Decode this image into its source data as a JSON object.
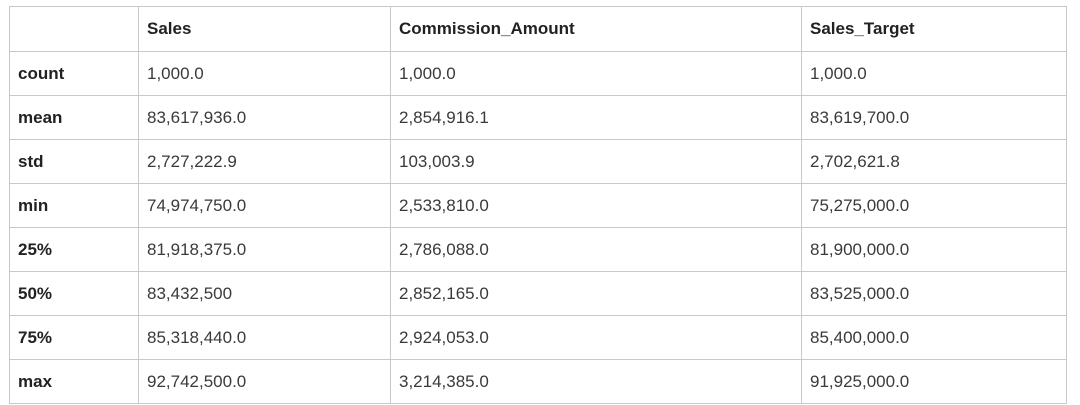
{
  "table": {
    "corner": "",
    "columns": [
      "Sales",
      "Commission_Amount",
      "Sales_Target"
    ],
    "rows": [
      {
        "label": "count",
        "values": [
          "1,000.0",
          "1,000.0",
          "1,000.0"
        ]
      },
      {
        "label": "mean",
        "values": [
          "83,617,936.0",
          "2,854,916.1",
          "83,619,700.0"
        ]
      },
      {
        "label": "std",
        "values": [
          "2,727,222.9",
          "103,003.9",
          "2,702,621.8"
        ]
      },
      {
        "label": "min",
        "values": [
          "74,974,750.0",
          "2,533,810.0",
          "75,275,000.0"
        ]
      },
      {
        "label": "25%",
        "values": [
          "81,918,375.0",
          "2,786,088.0",
          "81,900,000.0"
        ]
      },
      {
        "label": "50%",
        "values": [
          "83,432,500",
          "2,852,165.0",
          "83,525,000.0"
        ]
      },
      {
        "label": "75%",
        "values": [
          "85,318,440.0",
          "2,924,053.0",
          "85,400,000.0"
        ]
      },
      {
        "label": "max",
        "values": [
          "92,742,500.0",
          "3,214,385.0",
          "91,925,000.0"
        ]
      }
    ]
  }
}
